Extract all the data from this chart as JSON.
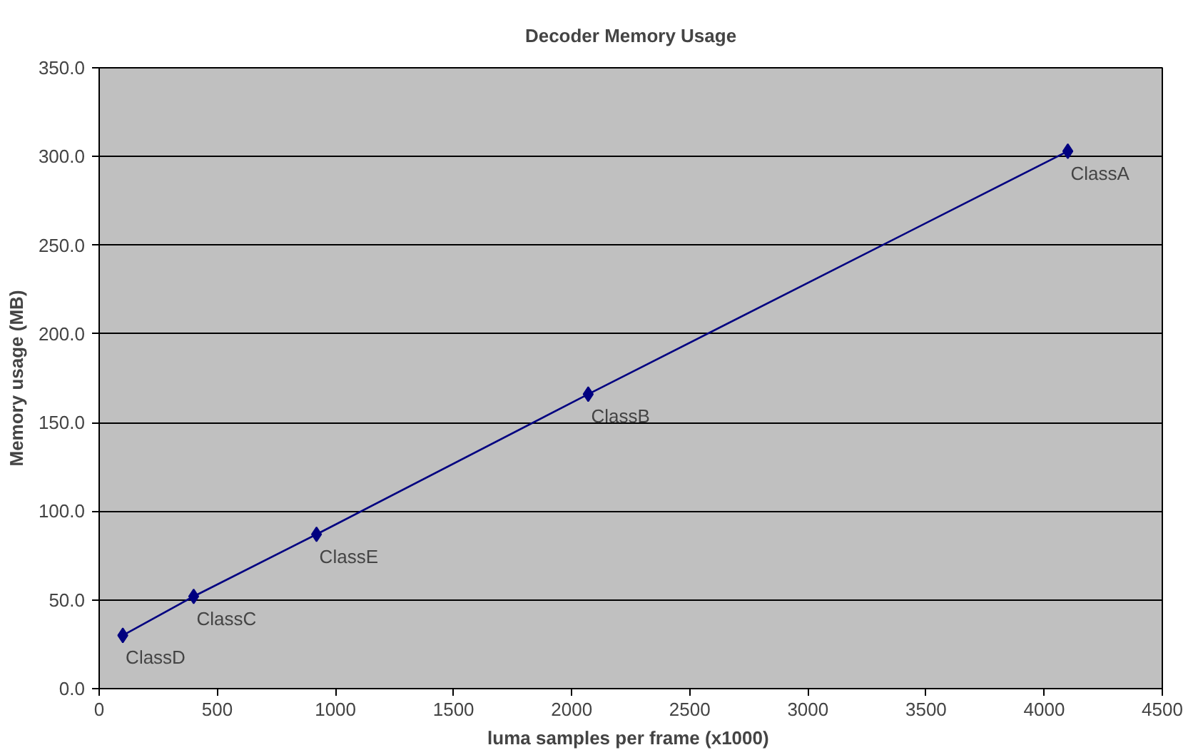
{
  "chart_data": {
    "type": "line",
    "title": "Decoder Memory Usage",
    "xlabel": "luma samples per frame  (x1000)",
    "ylabel": "Memory usage (MB)",
    "x": [
      100,
      400,
      920,
      2070,
      4100
    ],
    "series": [
      {
        "color": "#000080",
        "values": [
          30,
          52,
          87,
          166,
          303
        ]
      }
    ],
    "xlim": [
      0,
      4500
    ],
    "xticks": [
      0,
      500,
      1000,
      1500,
      2000,
      2500,
      3000,
      3500,
      4000,
      4500
    ],
    "ylim": [
      0,
      350
    ],
    "yticks": [
      {
        "value": 0,
        "label": "0.0"
      },
      {
        "value": 50,
        "label": "50.0"
      },
      {
        "value": 100,
        "label": "100.0"
      },
      {
        "value": 150,
        "label": "150.0"
      },
      {
        "value": 200,
        "label": "200.0"
      },
      {
        "value": 250,
        "label": "250.0"
      },
      {
        "value": 300,
        "label": "300.0"
      },
      {
        "value": 350,
        "label": "350.0"
      }
    ],
    "annotations": [
      {
        "text": "ClassD",
        "x": 100,
        "y": 30
      },
      {
        "text": "ClassC",
        "x": 400,
        "y": 52
      },
      {
        "text": "ClassE",
        "x": 920,
        "y": 87
      },
      {
        "text": "ClassB",
        "x": 2070,
        "y": 166
      },
      {
        "text": "ClassA",
        "x": 4100,
        "y": 303
      }
    ],
    "grid": "y",
    "marker": "diamond",
    "line_style": "solid"
  }
}
